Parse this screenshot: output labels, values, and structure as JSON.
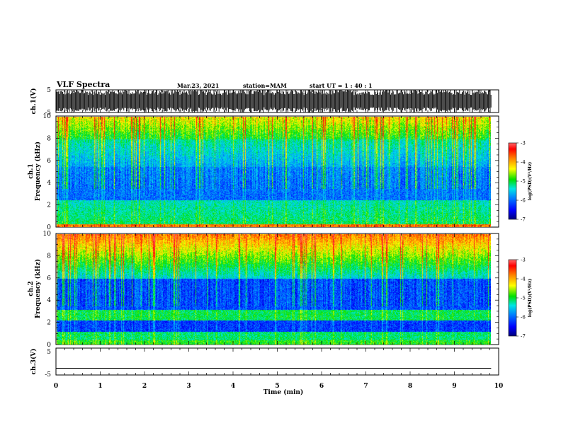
{
  "header": {
    "title": "VLF Spectra",
    "date": "Mar.23, 2021",
    "station": "station=MAM",
    "start": "start  UT =   1 : 40 : 1"
  },
  "chart_data": [
    {
      "type": "line",
      "name": "ch1-waveform",
      "ylabel": "ch.1(V)",
      "ylim": [
        -5,
        5
      ],
      "yticks": [
        "5",
        "-5"
      ],
      "description_values": "saturated waveform between -5 and 5"
    },
    {
      "type": "heatmap",
      "name": "ch1-spectrogram",
      "ylabel_line1": "ch.1",
      "ylabel_line2": "Frequency (kHz)",
      "ylim": [
        0,
        10
      ],
      "yticks": [
        "0",
        "2",
        "4",
        "6",
        "8",
        "10"
      ],
      "colorbar": {
        "label": "log(PSD)(V²/Hz)",
        "ticks": [
          "-3",
          "-4",
          "-5",
          "-6",
          "-7"
        ],
        "range": [
          -7,
          -3
        ]
      }
    },
    {
      "type": "heatmap",
      "name": "ch2-spectrogram",
      "ylabel_line1": "ch.2",
      "ylabel_line2": "Frequency (kHz)",
      "ylim": [
        0,
        10
      ],
      "yticks": [
        "0",
        "2",
        "4",
        "6",
        "8",
        "10"
      ],
      "colorbar": {
        "label": "log(PSD)(V²/Hz)",
        "ticks": [
          "-3",
          "-4",
          "-5",
          "-6",
          "-7"
        ],
        "range": [
          -7,
          -3
        ]
      }
    },
    {
      "type": "line",
      "name": "ch3-waveform",
      "ylabel": "ch.3(V)",
      "ylim": [
        -5,
        5
      ],
      "yticks": [
        "5",
        "-5"
      ],
      "x": [
        0,
        9.83
      ],
      "values": [
        -2.5,
        -2.5
      ]
    }
  ],
  "xaxis": {
    "label": "Time (min)",
    "ticks": [
      "0",
      "1",
      "2",
      "3",
      "4",
      "5",
      "6",
      "7",
      "8",
      "9",
      "10"
    ],
    "xlim": [
      0,
      10
    ],
    "data_end": 9.83
  },
  "colors": {
    "scale": [
      "#00007a",
      "#0000ff",
      "#0080ff",
      "#00e5e5",
      "#00e000",
      "#ffff00",
      "#ff8000",
      "#ff0000",
      "#ff5a5a"
    ]
  }
}
